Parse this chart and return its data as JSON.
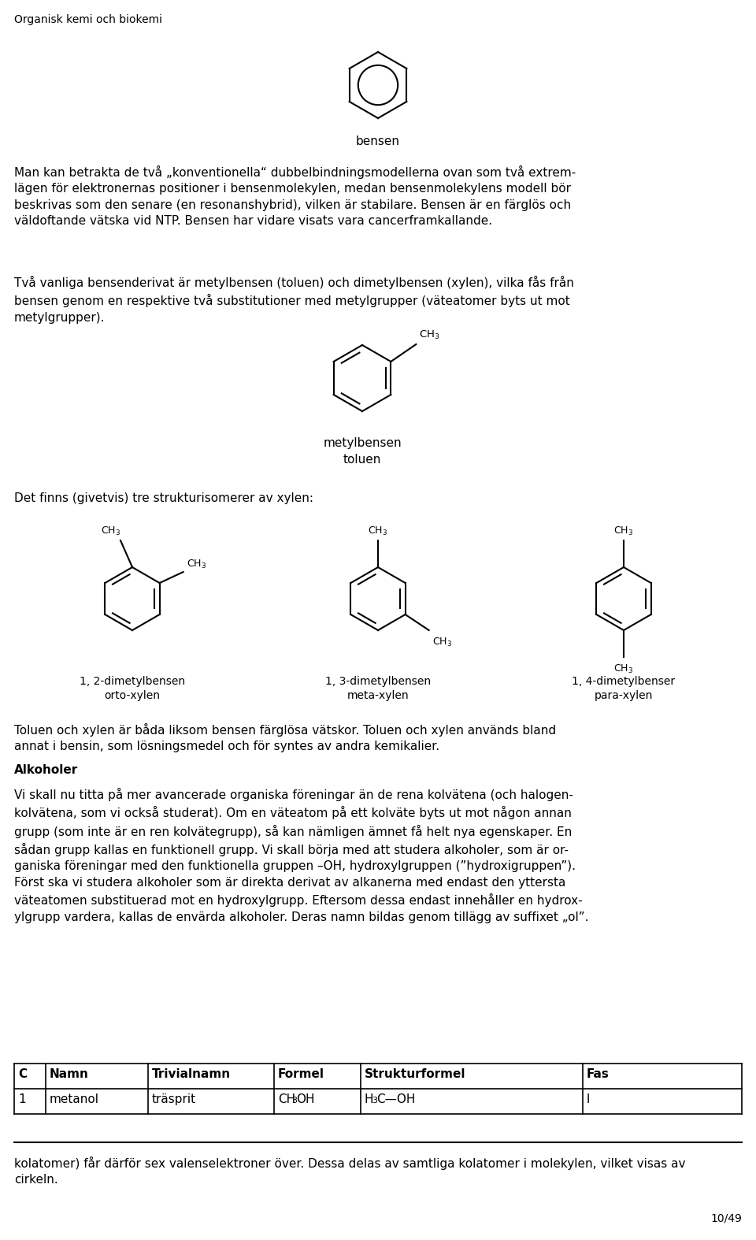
{
  "page_header": "Organisk kemi och biokemi",
  "page_number": "10/49",
  "background_color": "#ffffff",
  "text_color": "#000000",
  "font_size_body": 11.0,
  "font_size_small": 9.5,
  "para1": "Man kan betrakta de två „konventionella“ dubbelbindningsmodellerna ovan som två extrem-\nlägen för elektronernas positioner i bensenmolekylen, medan bensenmolekylens modell bör\nbeskrivas som den senare (en resonanshybrid), vilken är stabilare. Bensen är en färglös och\nväldoftande vätska vid NTP. Bensen har vidare visats vara cancerframkallande.",
  "para2": "Två vanliga bensenderivat är metylbensen (toluen) och dimetylbensen (xylen), vilka fås från\nbensen genom en respektive två substitutioner med metylgrupper (väteatomer byts ut mot\nmetylgrupper).",
  "label_bensen": "bensen",
  "label_metylbensen": "metylbensen",
  "label_toluen": "toluen",
  "para3": "Det finns (givetvis) tre strukturisomerer av xylen:",
  "label_12dimetyl": "1, 2-dimetylbensen",
  "label_orto": "orto-xylen",
  "label_13dimetyl": "1, 3-dimetylbensen",
  "label_meta": "meta-xylen",
  "label_14dimetyl": "1, 4-dimetylbenser",
  "label_para": "para-xylen",
  "para4": "Toluen och xylen är båda liksom bensen färglösa vätskor. Toluen och xylen används bland\nannat i bensin, som lösningsmedel och för syntes av andra kemikalier.",
  "header_alkoholer": "Alkoholer",
  "para5": "Vi skall nu titta på mer avancerade organiska föreningar än de rena kolvätena (och halogen-\nkolvätena, som vi också studerat). Om en väteatom på ett kolväte byts ut mot någon annan\ngrupp (som inte är en ren kolvätegrupp), så kan nämligen ämnet få helt nya egenskaper. En\nsådan grupp kallas en funktionell grupp. Vi skall börja med att studera alkoholer, som är or-\nganiska föreningar med den funktionella gruppen –OH, hydroxylgruppen (”hydroxigruppen”).\nFörst ska vi studera alkoholer som är direkta derivat av alkanerna med endast den yttersta\nväteatomen substituerad mot en hydroxylgrupp. Eftersom dessa endast innehåller en hydrox-\nylgrupp vardera, kallas de envärda alkoholer. Deras namn bildas genom tillägg av suffixet „ol”.",
  "table_headers": [
    "C",
    "Namn",
    "Trivialnamn",
    "Formel",
    "Strukturformel",
    "Fas"
  ],
  "table_row": [
    "1",
    "metanol",
    "träsprit",
    "CH3OH",
    "H3C—OH",
    "l"
  ],
  "para6": "kolatomer) får därför sex valenselektroner över. Dessa delas av samtliga kolatomer i molekylen, vilket visas av\ncirkeln."
}
